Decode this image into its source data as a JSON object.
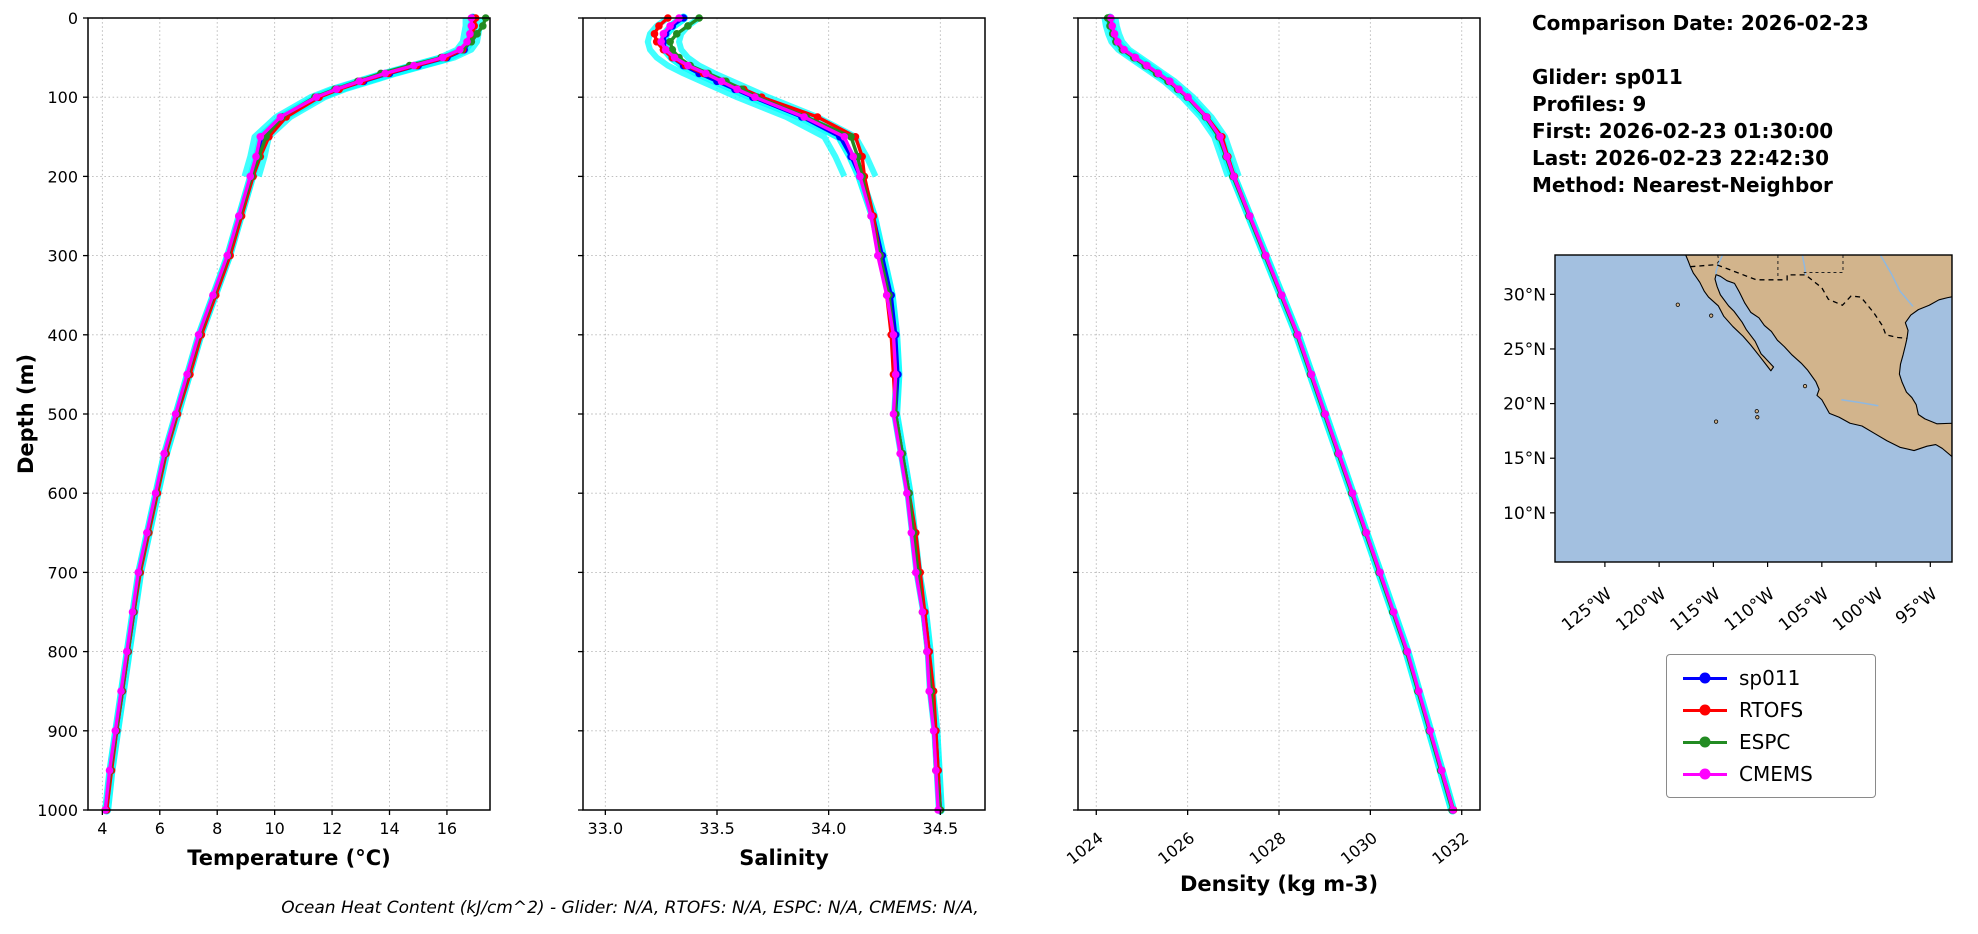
{
  "info": {
    "comparison_date": "Comparison Date: 2026-02-23",
    "glider": "Glider: sp011",
    "profiles": "Profiles: 9",
    "first": "First: 2026-02-23 01:30:00",
    "last": "Last: 2026-02-23 22:42:30",
    "method": "Method: Nearest-Neighbor"
  },
  "legend": {
    "items": [
      {
        "label": "sp011",
        "color": "#0000ff"
      },
      {
        "label": "RTOFS",
        "color": "#ff0000"
      },
      {
        "label": "ESPC",
        "color": "#228b22"
      },
      {
        "label": "CMEMS",
        "color": "#ff00ff"
      }
    ]
  },
  "footer": {
    "caption": "Ocean Heat Content (kJ/cm^2) - Glider: N/A,  RTOFS: N/A,  ESPC: N/A,  CMEMS: N/A,"
  },
  "map": {
    "land_color": "#d2b48c",
    "ocean_color": "#a3c0e0",
    "lat_tick_labels": [
      "30°N",
      "25°N",
      "20°N",
      "15°N",
      "10°N"
    ],
    "lat_tick_values": [
      30,
      25,
      20,
      15,
      10
    ],
    "lon_tick_labels": [
      "125°W",
      "120°W",
      "115°W",
      "110°W",
      "105°W",
      "100°W",
      "95°W"
    ],
    "lon_tick_values": [
      -125,
      -120,
      -115,
      -110,
      -105,
      -100,
      -95
    ]
  },
  "chart_data": [
    {
      "type": "line",
      "xlabel": "Temperature (°C)",
      "ylabel": "Depth (m)",
      "xlim": [
        3.5,
        17.5
      ],
      "ylim": [
        0,
        1000
      ],
      "grid": true,
      "halo_color": "#00ffff",
      "xtick_values": [
        4,
        6,
        8,
        10,
        12,
        14,
        16
      ],
      "xtick_labels": [
        "4",
        "6",
        "8",
        "10",
        "12",
        "14",
        "16"
      ],
      "ytick_values": [
        0,
        100,
        200,
        300,
        400,
        500,
        600,
        700,
        800,
        900,
        1000
      ],
      "ytick_labels": [
        "0",
        "100",
        "200",
        "300",
        "400",
        "500",
        "600",
        "700",
        "800",
        "900",
        "1000"
      ],
      "depths": [
        0,
        10,
        20,
        30,
        40,
        50,
        60,
        70,
        80,
        90,
        100,
        125,
        150,
        175,
        200,
        250,
        300,
        350,
        400,
        450,
        500,
        550,
        600,
        650,
        700,
        750,
        800,
        850,
        900,
        950,
        1000
      ],
      "series": [
        {
          "name": "sp011",
          "color": "#0000ff",
          "values": [
            16.9,
            16.9,
            16.85,
            16.8,
            16.6,
            16.0,
            15.0,
            14.0,
            13.1,
            12.2,
            11.5,
            10.3,
            9.55,
            9.4,
            9.2,
            8.8,
            8.4,
            7.9,
            7.4,
            7.0,
            6.6,
            6.2,
            5.9,
            5.6,
            5.3,
            5.1,
            4.9,
            4.7,
            4.5,
            4.3,
            4.15
          ]
        },
        {
          "name": "RTOFS",
          "color": "#ff0000",
          "values": [
            17.0,
            16.95,
            16.9,
            16.8,
            16.55,
            15.95,
            14.95,
            13.95,
            13.05,
            12.25,
            11.55,
            10.4,
            9.8,
            9.5,
            9.25,
            8.85,
            8.45,
            7.95,
            7.45,
            7.05,
            6.62,
            6.22,
            5.92,
            5.62,
            5.32,
            5.1,
            4.9,
            4.7,
            4.5,
            4.32,
            4.15
          ]
        },
        {
          "name": "ESPC",
          "color": "#228b22",
          "values": [
            17.35,
            17.25,
            17.05,
            16.85,
            16.5,
            15.8,
            14.7,
            13.7,
            12.9,
            12.1,
            11.4,
            10.25,
            9.7,
            9.45,
            9.2,
            8.78,
            8.38,
            7.88,
            7.38,
            6.98,
            6.58,
            6.18,
            5.88,
            5.58,
            5.28,
            5.08,
            4.88,
            4.68,
            4.48,
            4.28,
            4.1
          ]
        },
        {
          "name": "CMEMS",
          "color": "#ff00ff",
          "values": [
            16.85,
            16.85,
            16.8,
            16.7,
            16.45,
            15.85,
            14.85,
            13.85,
            12.95,
            12.15,
            11.45,
            10.2,
            9.5,
            9.35,
            9.15,
            8.75,
            8.35,
            7.85,
            7.35,
            6.95,
            6.55,
            6.15,
            5.85,
            5.55,
            5.25,
            5.05,
            4.85,
            4.65,
            4.45,
            4.25,
            4.1
          ]
        }
      ]
    },
    {
      "type": "line",
      "xlabel": "Salinity",
      "ylabel": "Depth (m)",
      "xlim": [
        32.9,
        34.7
      ],
      "ylim": [
        0,
        1000
      ],
      "grid": true,
      "halo_color": "#00ffff",
      "xtick_values": [
        33.0,
        33.5,
        34.0,
        34.5
      ],
      "xtick_labels": [
        "33.0",
        "33.5",
        "34.0",
        "34.5"
      ],
      "ytick_values": [
        0,
        100,
        200,
        300,
        400,
        500,
        600,
        700,
        800,
        900,
        1000
      ],
      "ytick_labels": [
        "0",
        "100",
        "200",
        "300",
        "400",
        "500",
        "600",
        "700",
        "800",
        "900",
        "1000"
      ],
      "depths": [
        0,
        10,
        20,
        30,
        40,
        50,
        60,
        70,
        80,
        90,
        100,
        125,
        150,
        175,
        200,
        250,
        300,
        350,
        400,
        450,
        500,
        550,
        600,
        650,
        700,
        750,
        800,
        850,
        900,
        950,
        1000
      ],
      "series": [
        {
          "name": "sp011",
          "color": "#0000ff",
          "values": [
            33.35,
            33.3,
            33.27,
            33.26,
            33.27,
            33.3,
            33.35,
            33.42,
            33.5,
            33.58,
            33.66,
            33.88,
            34.05,
            34.1,
            34.14,
            34.2,
            34.24,
            34.28,
            34.3,
            34.31,
            34.3,
            34.33,
            34.36,
            34.38,
            34.4,
            34.43,
            34.45,
            34.46,
            34.48,
            34.49,
            34.5
          ]
        },
        {
          "name": "RTOFS",
          "color": "#ff0000",
          "values": [
            33.28,
            33.24,
            33.22,
            33.23,
            33.26,
            33.3,
            33.36,
            33.44,
            33.53,
            33.62,
            33.7,
            33.95,
            34.12,
            34.15,
            34.16,
            34.2,
            34.23,
            34.26,
            34.28,
            34.29,
            34.3,
            34.33,
            34.36,
            34.39,
            34.41,
            34.43,
            34.45,
            34.47,
            34.48,
            34.49,
            34.5
          ]
        },
        {
          "name": "ESPC",
          "color": "#228b22",
          "values": [
            33.42,
            33.37,
            33.32,
            33.29,
            33.3,
            33.33,
            33.38,
            33.46,
            33.54,
            33.61,
            33.68,
            33.9,
            34.1,
            34.13,
            34.15,
            34.19,
            34.23,
            34.27,
            34.29,
            34.3,
            34.3,
            34.33,
            34.36,
            34.38,
            34.4,
            34.42,
            34.44,
            34.46,
            34.47,
            34.48,
            34.5
          ]
        },
        {
          "name": "CMEMS",
          "color": "#ff00ff",
          "values": [
            33.33,
            33.29,
            33.26,
            33.25,
            33.27,
            33.31,
            33.37,
            33.45,
            33.52,
            33.59,
            33.67,
            33.89,
            34.07,
            34.11,
            34.14,
            34.19,
            34.22,
            34.26,
            34.29,
            34.3,
            34.29,
            34.32,
            34.35,
            34.37,
            34.39,
            34.42,
            34.44,
            34.45,
            34.47,
            34.48,
            34.49
          ]
        }
      ]
    },
    {
      "type": "line",
      "xlabel": "Density (kg m-3)",
      "ylabel": "Depth (m)",
      "xlim": [
        1023.6,
        1032.4
      ],
      "ylim": [
        0,
        1000
      ],
      "grid": true,
      "halo_color": "#00ffff",
      "xtick_values": [
        1024,
        1026,
        1028,
        1030,
        1032
      ],
      "xtick_labels": [
        "1024",
        "1026",
        "1028",
        "1030",
        "1032"
      ],
      "xtick_rotation": -38,
      "ytick_values": [
        0,
        100,
        200,
        300,
        400,
        500,
        600,
        700,
        800,
        900,
        1000
      ],
      "ytick_labels": [
        "0",
        "100",
        "200",
        "300",
        "400",
        "500",
        "600",
        "700",
        "800",
        "900",
        "1000"
      ],
      "depths": [
        0,
        10,
        20,
        30,
        40,
        50,
        60,
        70,
        80,
        90,
        100,
        125,
        150,
        175,
        200,
        250,
        300,
        350,
        400,
        450,
        500,
        550,
        600,
        650,
        700,
        750,
        800,
        850,
        900,
        950,
        1000
      ],
      "series": [
        {
          "name": "sp011",
          "color": "#0000ff",
          "values": [
            1024.3,
            1024.33,
            1024.38,
            1024.45,
            1024.6,
            1024.85,
            1025.1,
            1025.35,
            1025.6,
            1025.8,
            1026.0,
            1026.4,
            1026.7,
            1026.85,
            1027.0,
            1027.35,
            1027.7,
            1028.05,
            1028.4,
            1028.7,
            1029.0,
            1029.3,
            1029.6,
            1029.9,
            1030.2,
            1030.5,
            1030.8,
            1031.05,
            1031.3,
            1031.55,
            1031.8
          ]
        },
        {
          "name": "RTOFS",
          "color": "#ff0000",
          "values": [
            1024.28,
            1024.32,
            1024.37,
            1024.44,
            1024.58,
            1024.83,
            1025.09,
            1025.34,
            1025.58,
            1025.79,
            1026.0,
            1026.42,
            1026.75,
            1026.88,
            1027.02,
            1027.36,
            1027.71,
            1028.06,
            1028.41,
            1028.71,
            1029.01,
            1029.31,
            1029.61,
            1029.91,
            1030.21,
            1030.5,
            1030.79,
            1031.05,
            1031.3,
            1031.56,
            1031.82
          ]
        },
        {
          "name": "ESPC",
          "color": "#228b22",
          "values": [
            1024.25,
            1024.3,
            1024.36,
            1024.43,
            1024.57,
            1024.82,
            1025.07,
            1025.32,
            1025.57,
            1025.78,
            1025.99,
            1026.39,
            1026.68,
            1026.84,
            1026.99,
            1027.34,
            1027.69,
            1028.04,
            1028.39,
            1028.69,
            1028.99,
            1029.29,
            1029.59,
            1029.89,
            1030.19,
            1030.49,
            1030.79,
            1031.04,
            1031.29,
            1031.54,
            1031.79
          ]
        },
        {
          "name": "CMEMS",
          "color": "#ff00ff",
          "values": [
            1024.32,
            1024.35,
            1024.4,
            1024.47,
            1024.61,
            1024.86,
            1025.11,
            1025.36,
            1025.61,
            1025.81,
            1026.01,
            1026.41,
            1026.71,
            1026.86,
            1027.01,
            1027.36,
            1027.71,
            1028.06,
            1028.41,
            1028.71,
            1029.01,
            1029.31,
            1029.61,
            1029.91,
            1030.21,
            1030.51,
            1030.81,
            1031.06,
            1031.31,
            1031.56,
            1031.81
          ]
        }
      ]
    }
  ]
}
